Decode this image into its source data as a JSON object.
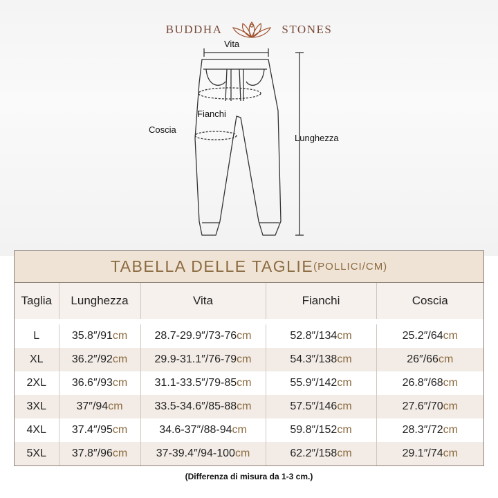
{
  "brand": {
    "left": "BUDDHA",
    "right": "STONES",
    "logo_icon": "lotus-meditation-icon",
    "color": "#7a4a3a"
  },
  "diagram": {
    "waist": "Vita",
    "hips": "Fianchi",
    "thigh": "Coscia",
    "length": "Lunghezza"
  },
  "table": {
    "title": "TABELLA DELLE TAGLIE",
    "title_unit": "(POLLICI/CM)",
    "accent": "#8b6a3f",
    "headers": [
      "Taglia",
      "Lunghezza",
      "Vita",
      "Fianchi",
      "Coscia"
    ],
    "rows": [
      {
        "size": "L",
        "cells": [
          [
            "35.8″/91",
            "cm"
          ],
          [
            "28.7-29.9″/73-76",
            "cm"
          ],
          [
            "52.8″/134",
            "cm"
          ],
          [
            "25.2″/64",
            "cm"
          ]
        ]
      },
      {
        "size": "XL",
        "cells": [
          [
            "36.2″/92",
            "cm"
          ],
          [
            "29.9-31.1″/76-79",
            "cm"
          ],
          [
            "54.3″/138",
            "cm"
          ],
          [
            "26″/66",
            "cm"
          ]
        ]
      },
      {
        "size": "2XL",
        "cells": [
          [
            "36.6″/93",
            "cm"
          ],
          [
            "31.1-33.5″/79-85",
            "cm"
          ],
          [
            "55.9″/142",
            "cm"
          ],
          [
            "26.8″/68",
            "cm"
          ]
        ]
      },
      {
        "size": "3XL",
        "cells": [
          [
            "37″/94",
            "cm"
          ],
          [
            "33.5-34.6″/85-88",
            "cm"
          ],
          [
            "57.5″/146",
            "cm"
          ],
          [
            "27.6″/70",
            "cm"
          ]
        ]
      },
      {
        "size": "4XL",
        "cells": [
          [
            "37.4″/95",
            "cm"
          ],
          [
            "34.6-37″/88-94",
            "cm"
          ],
          [
            "59.8″/152",
            "cm"
          ],
          [
            "28.3″/72",
            "cm"
          ]
        ]
      },
      {
        "size": "5XL",
        "cells": [
          [
            "37.8″/96",
            "cm"
          ],
          [
            "37-39.4″/94-100",
            "cm"
          ],
          [
            "62.2″/158",
            "cm"
          ],
          [
            "29.1″/74",
            "cm"
          ]
        ]
      }
    ]
  },
  "note": "(Differenza di misura da 1-3 cm.)"
}
